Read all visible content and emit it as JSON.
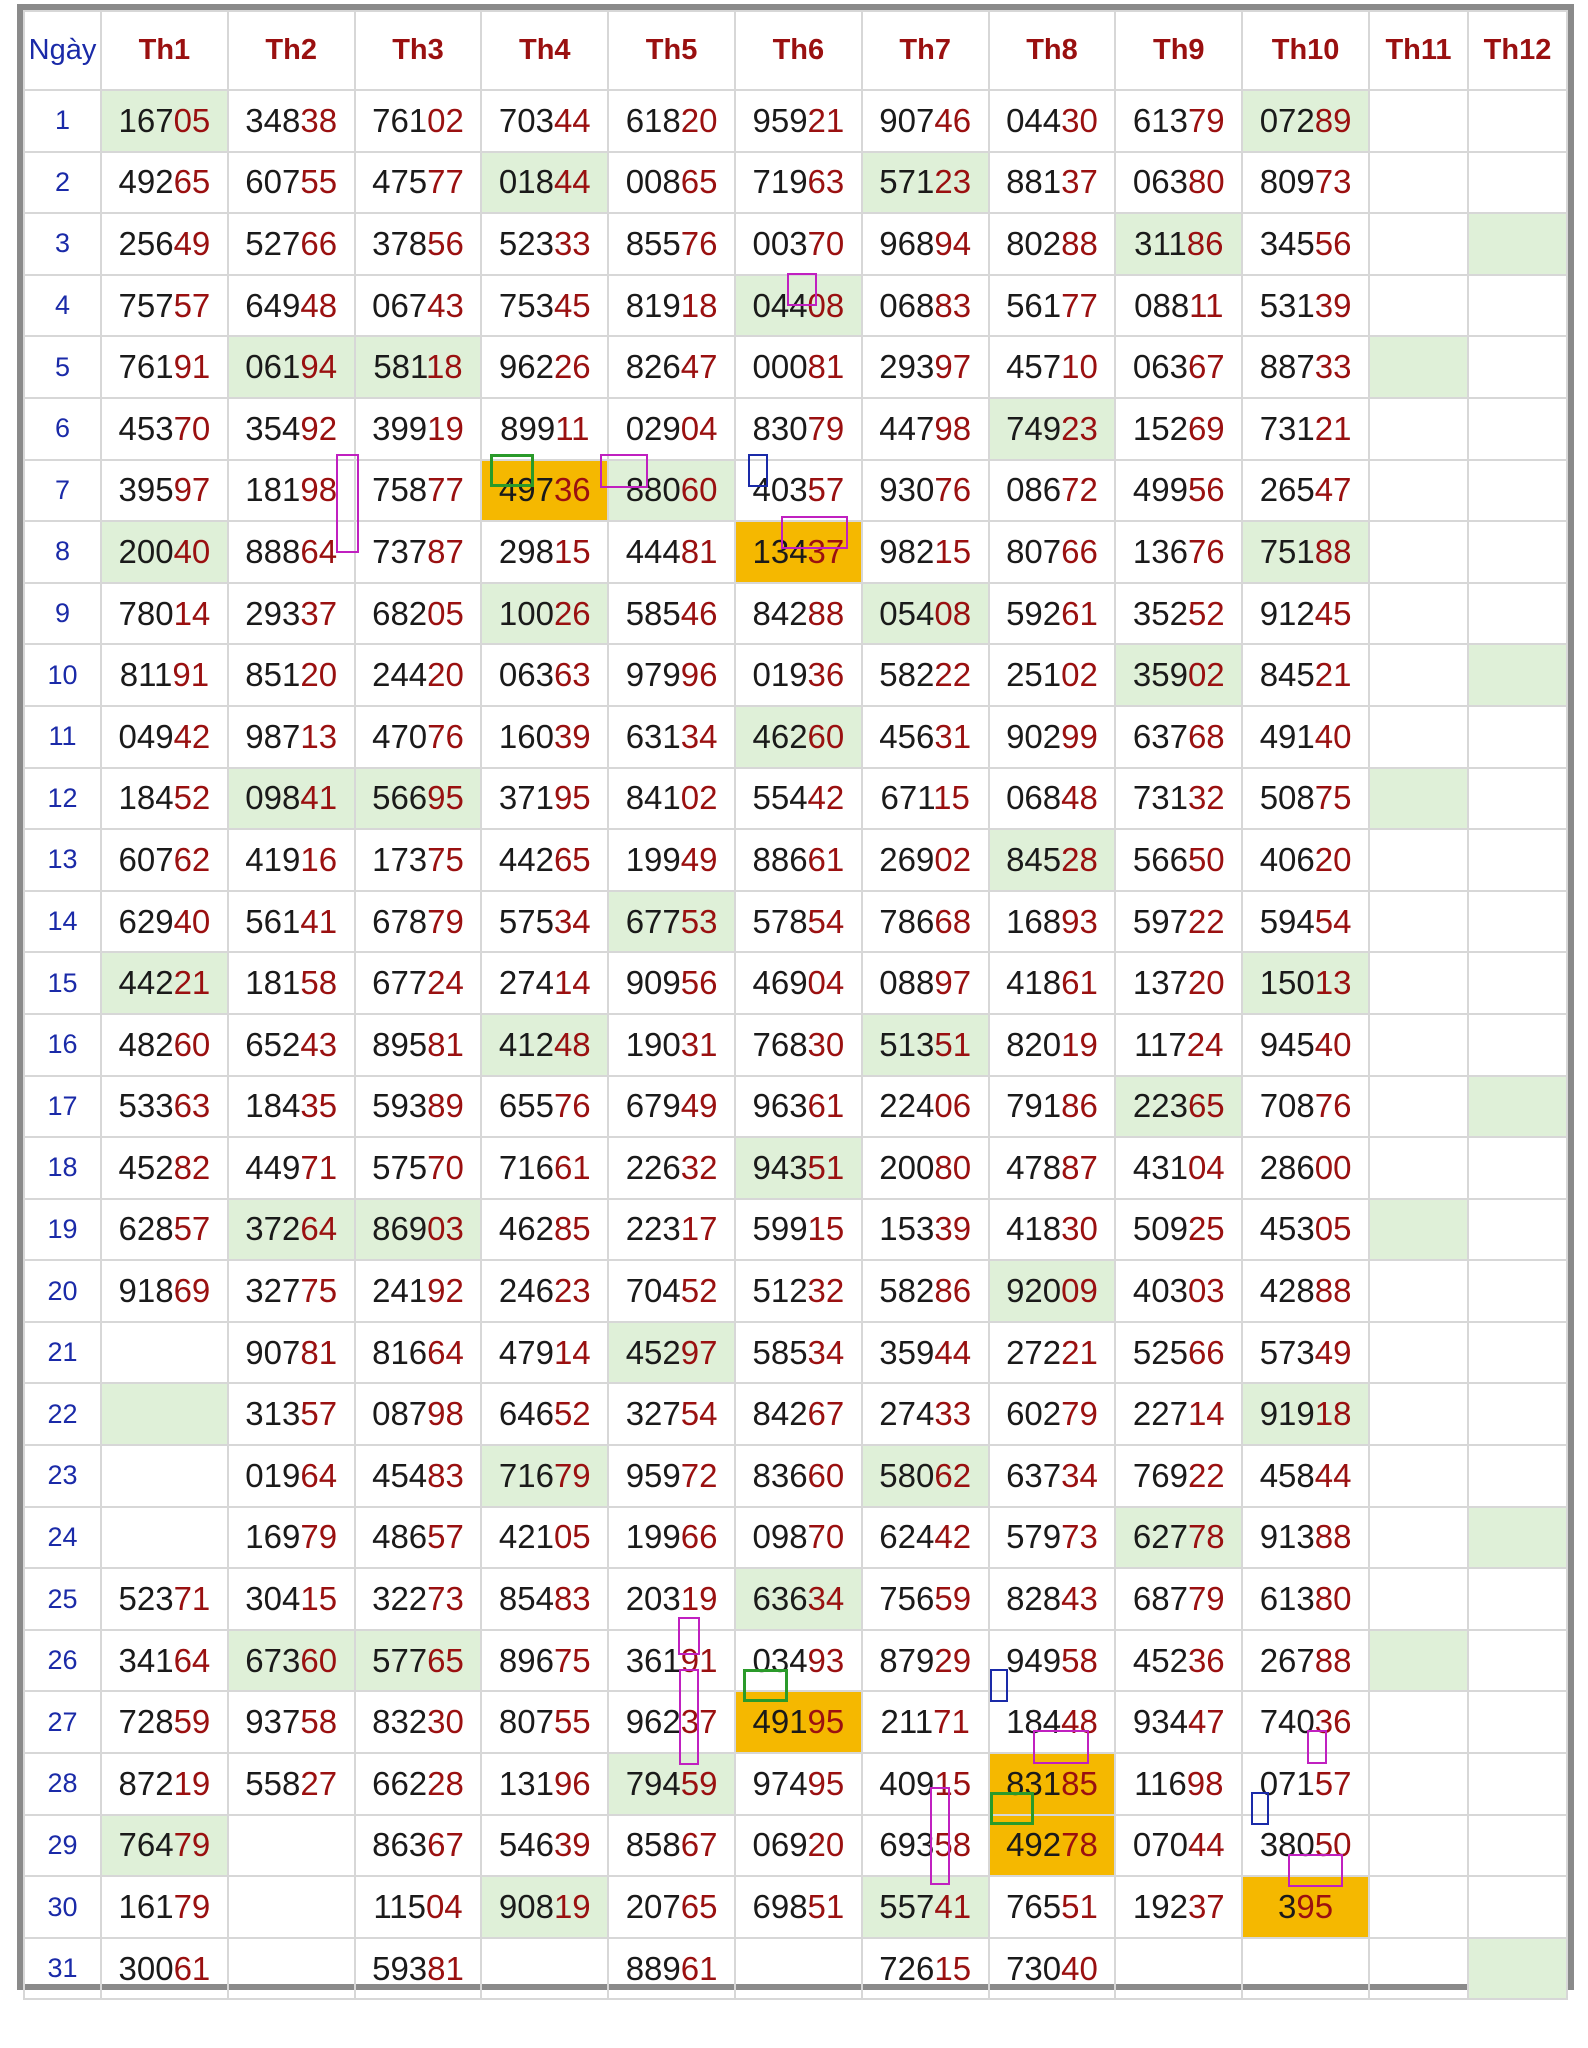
{
  "header": {
    "day_label": "Ngày",
    "months": [
      "Th1",
      "Th2",
      "Th3",
      "Th4",
      "Th5",
      "Th6",
      "Th7",
      "Th8",
      "Th9",
      "Th10",
      "Th11",
      "Th12"
    ]
  },
  "colors": {
    "green_cell": "#dff0d8",
    "orange_cell": "#f5b800",
    "first_digits": "#1a1a1a",
    "last_digits": "#9a1010",
    "day_text": "#1a2aa8",
    "mark_magenta": "#c020c0",
    "mark_blue": "#1a2aa8",
    "mark_green": "#2a9a2a"
  },
  "rows": [
    {
      "day": "1",
      "values": [
        "16705",
        "34838",
        "76102",
        "70344",
        "61820",
        "95921",
        "90746",
        "04430",
        "61379",
        "07289",
        "",
        ""
      ],
      "green": [
        0,
        9
      ],
      "orange": []
    },
    {
      "day": "2",
      "values": [
        "49265",
        "60755",
        "47577",
        "01844",
        "00865",
        "71963",
        "57123",
        "88137",
        "06380",
        "80973",
        "",
        ""
      ],
      "green": [
        3,
        6
      ],
      "orange": []
    },
    {
      "day": "3",
      "values": [
        "25649",
        "52766",
        "37856",
        "52333",
        "85576",
        "00370",
        "96894",
        "80288",
        "31186",
        "34556",
        "",
        ""
      ],
      "green": [
        8,
        11
      ],
      "orange": []
    },
    {
      "day": "4",
      "values": [
        "75757",
        "64948",
        "06743",
        "75345",
        "81918",
        "04408",
        "06883",
        "56177",
        "08811",
        "53139",
        "",
        ""
      ],
      "green": [
        5
      ],
      "orange": []
    },
    {
      "day": "5",
      "values": [
        "76191",
        "06194",
        "58118",
        "96226",
        "82647",
        "00081",
        "29397",
        "45710",
        "06367",
        "88733",
        "",
        ""
      ],
      "green": [
        1,
        2,
        10
      ],
      "orange": []
    },
    {
      "day": "6",
      "values": [
        "45370",
        "35492",
        "39919",
        "89911",
        "02904",
        "83079",
        "44798",
        "74923",
        "15269",
        "73121",
        "",
        ""
      ],
      "green": [
        7
      ],
      "orange": []
    },
    {
      "day": "7",
      "values": [
        "39597",
        "18198",
        "75877",
        "49736",
        "88060",
        "40357",
        "93076",
        "08672",
        "49956",
        "26547",
        "",
        ""
      ],
      "green": [
        4
      ],
      "orange": [
        3
      ]
    },
    {
      "day": "8",
      "values": [
        "20040",
        "88864",
        "73787",
        "29815",
        "44481",
        "13437",
        "98215",
        "80766",
        "13676",
        "75188",
        "",
        ""
      ],
      "green": [
        0,
        9
      ],
      "orange": [
        5
      ]
    },
    {
      "day": "9",
      "values": [
        "78014",
        "29337",
        "68205",
        "10026",
        "58546",
        "84288",
        "05408",
        "59261",
        "35252",
        "91245",
        "",
        ""
      ],
      "green": [
        3,
        6
      ],
      "orange": []
    },
    {
      "day": "10",
      "values": [
        "81191",
        "85120",
        "24420",
        "06363",
        "97996",
        "01936",
        "58222",
        "25102",
        "35902",
        "84521",
        "",
        ""
      ],
      "green": [
        8,
        11
      ],
      "orange": []
    },
    {
      "day": "11",
      "values": [
        "04942",
        "98713",
        "47076",
        "16039",
        "63134",
        "46260",
        "45631",
        "90299",
        "63768",
        "49140",
        "",
        ""
      ],
      "green": [
        5
      ],
      "orange": []
    },
    {
      "day": "12",
      "values": [
        "18452",
        "09841",
        "56695",
        "37195",
        "84102",
        "55442",
        "67115",
        "06848",
        "73132",
        "50875",
        "",
        ""
      ],
      "green": [
        1,
        2,
        10
      ],
      "orange": []
    },
    {
      "day": "13",
      "values": [
        "60762",
        "41916",
        "17375",
        "44265",
        "19949",
        "88661",
        "26902",
        "84528",
        "56650",
        "40620",
        "",
        ""
      ],
      "green": [
        7
      ],
      "orange": []
    },
    {
      "day": "14",
      "values": [
        "62940",
        "56141",
        "67879",
        "57534",
        "67753",
        "57854",
        "78668",
        "16893",
        "59722",
        "59454",
        "",
        ""
      ],
      "green": [
        4
      ],
      "orange": []
    },
    {
      "day": "15",
      "values": [
        "44221",
        "18158",
        "67724",
        "27414",
        "90956",
        "46904",
        "08897",
        "41861",
        "13720",
        "15013",
        "",
        ""
      ],
      "green": [
        0,
        9
      ],
      "orange": []
    },
    {
      "day": "16",
      "values": [
        "48260",
        "65243",
        "89581",
        "41248",
        "19031",
        "76830",
        "51351",
        "82019",
        "11724",
        "94540",
        "",
        ""
      ],
      "green": [
        3,
        6
      ],
      "orange": []
    },
    {
      "day": "17",
      "values": [
        "53363",
        "18435",
        "59389",
        "65576",
        "67949",
        "96361",
        "22406",
        "79186",
        "22365",
        "70876",
        "",
        ""
      ],
      "green": [
        8,
        11
      ],
      "orange": []
    },
    {
      "day": "18",
      "values": [
        "45282",
        "44971",
        "57570",
        "71661",
        "22632",
        "94351",
        "20080",
        "47887",
        "43104",
        "28600",
        "",
        ""
      ],
      "green": [
        5
      ],
      "orange": []
    },
    {
      "day": "19",
      "values": [
        "62857",
        "37264",
        "86903",
        "46285",
        "22317",
        "59915",
        "15339",
        "41830",
        "50925",
        "45305",
        "",
        ""
      ],
      "green": [
        1,
        2,
        10
      ],
      "orange": []
    },
    {
      "day": "20",
      "values": [
        "91869",
        "32775",
        "24192",
        "24623",
        "70452",
        "51232",
        "58286",
        "92009",
        "40303",
        "42888",
        "",
        ""
      ],
      "green": [
        7
      ],
      "orange": []
    },
    {
      "day": "21",
      "values": [
        "",
        "90781",
        "81664",
        "47914",
        "45297",
        "58534",
        "35944",
        "27221",
        "52566",
        "57349",
        "",
        ""
      ],
      "green": [
        4
      ],
      "orange": []
    },
    {
      "day": "22",
      "values": [
        "",
        "31357",
        "08798",
        "64652",
        "32754",
        "84267",
        "27433",
        "60279",
        "22714",
        "91918",
        "",
        ""
      ],
      "green": [
        0,
        9
      ],
      "orange": []
    },
    {
      "day": "23",
      "values": [
        "",
        "01964",
        "45483",
        "71679",
        "95972",
        "83660",
        "58062",
        "63734",
        "76922",
        "45844",
        "",
        ""
      ],
      "green": [
        3,
        6
      ],
      "orange": []
    },
    {
      "day": "24",
      "values": [
        "",
        "16979",
        "48657",
        "42105",
        "19966",
        "09870",
        "62442",
        "57973",
        "62778",
        "91388",
        "",
        ""
      ],
      "green": [
        8,
        11
      ],
      "orange": []
    },
    {
      "day": "25",
      "values": [
        "52371",
        "30415",
        "32273",
        "85483",
        "20319",
        "63634",
        "75659",
        "82843",
        "68779",
        "61380",
        "",
        ""
      ],
      "green": [
        5
      ],
      "orange": []
    },
    {
      "day": "26",
      "values": [
        "34164",
        "67360",
        "57765",
        "89675",
        "36191",
        "03493",
        "87929",
        "94958",
        "45236",
        "26788",
        "",
        ""
      ],
      "green": [
        1,
        2,
        10
      ],
      "orange": []
    },
    {
      "day": "27",
      "values": [
        "72859",
        "93758",
        "83230",
        "80755",
        "96237",
        "49195",
        "21171",
        "18448",
        "93447",
        "74036",
        "",
        ""
      ],
      "green": [],
      "orange": [
        5
      ]
    },
    {
      "day": "28",
      "values": [
        "87219",
        "55827",
        "66228",
        "13196",
        "79459",
        "97495",
        "40915",
        "83185",
        "11698",
        "07157",
        "",
        ""
      ],
      "green": [
        4
      ],
      "orange": [
        7
      ]
    },
    {
      "day": "29",
      "values": [
        "76479",
        "",
        "86367",
        "54639",
        "85867",
        "06920",
        "69358",
        "49278",
        "07044",
        "38050",
        "",
        ""
      ],
      "green": [
        0
      ],
      "orange": [
        7
      ]
    },
    {
      "day": "30",
      "values": [
        "16179",
        "",
        "11504",
        "90819",
        "20765",
        "69851",
        "55741",
        "76551",
        "19237",
        "395",
        "",
        ""
      ],
      "green": [
        3,
        6
      ],
      "orange": [
        9
      ]
    },
    {
      "day": "31",
      "values": [
        "30061",
        "",
        "59381",
        "",
        "88961",
        "",
        "72615",
        "73040",
        "",
        "",
        "",
        ""
      ],
      "green": [
        11
      ],
      "orange": []
    }
  ]
}
